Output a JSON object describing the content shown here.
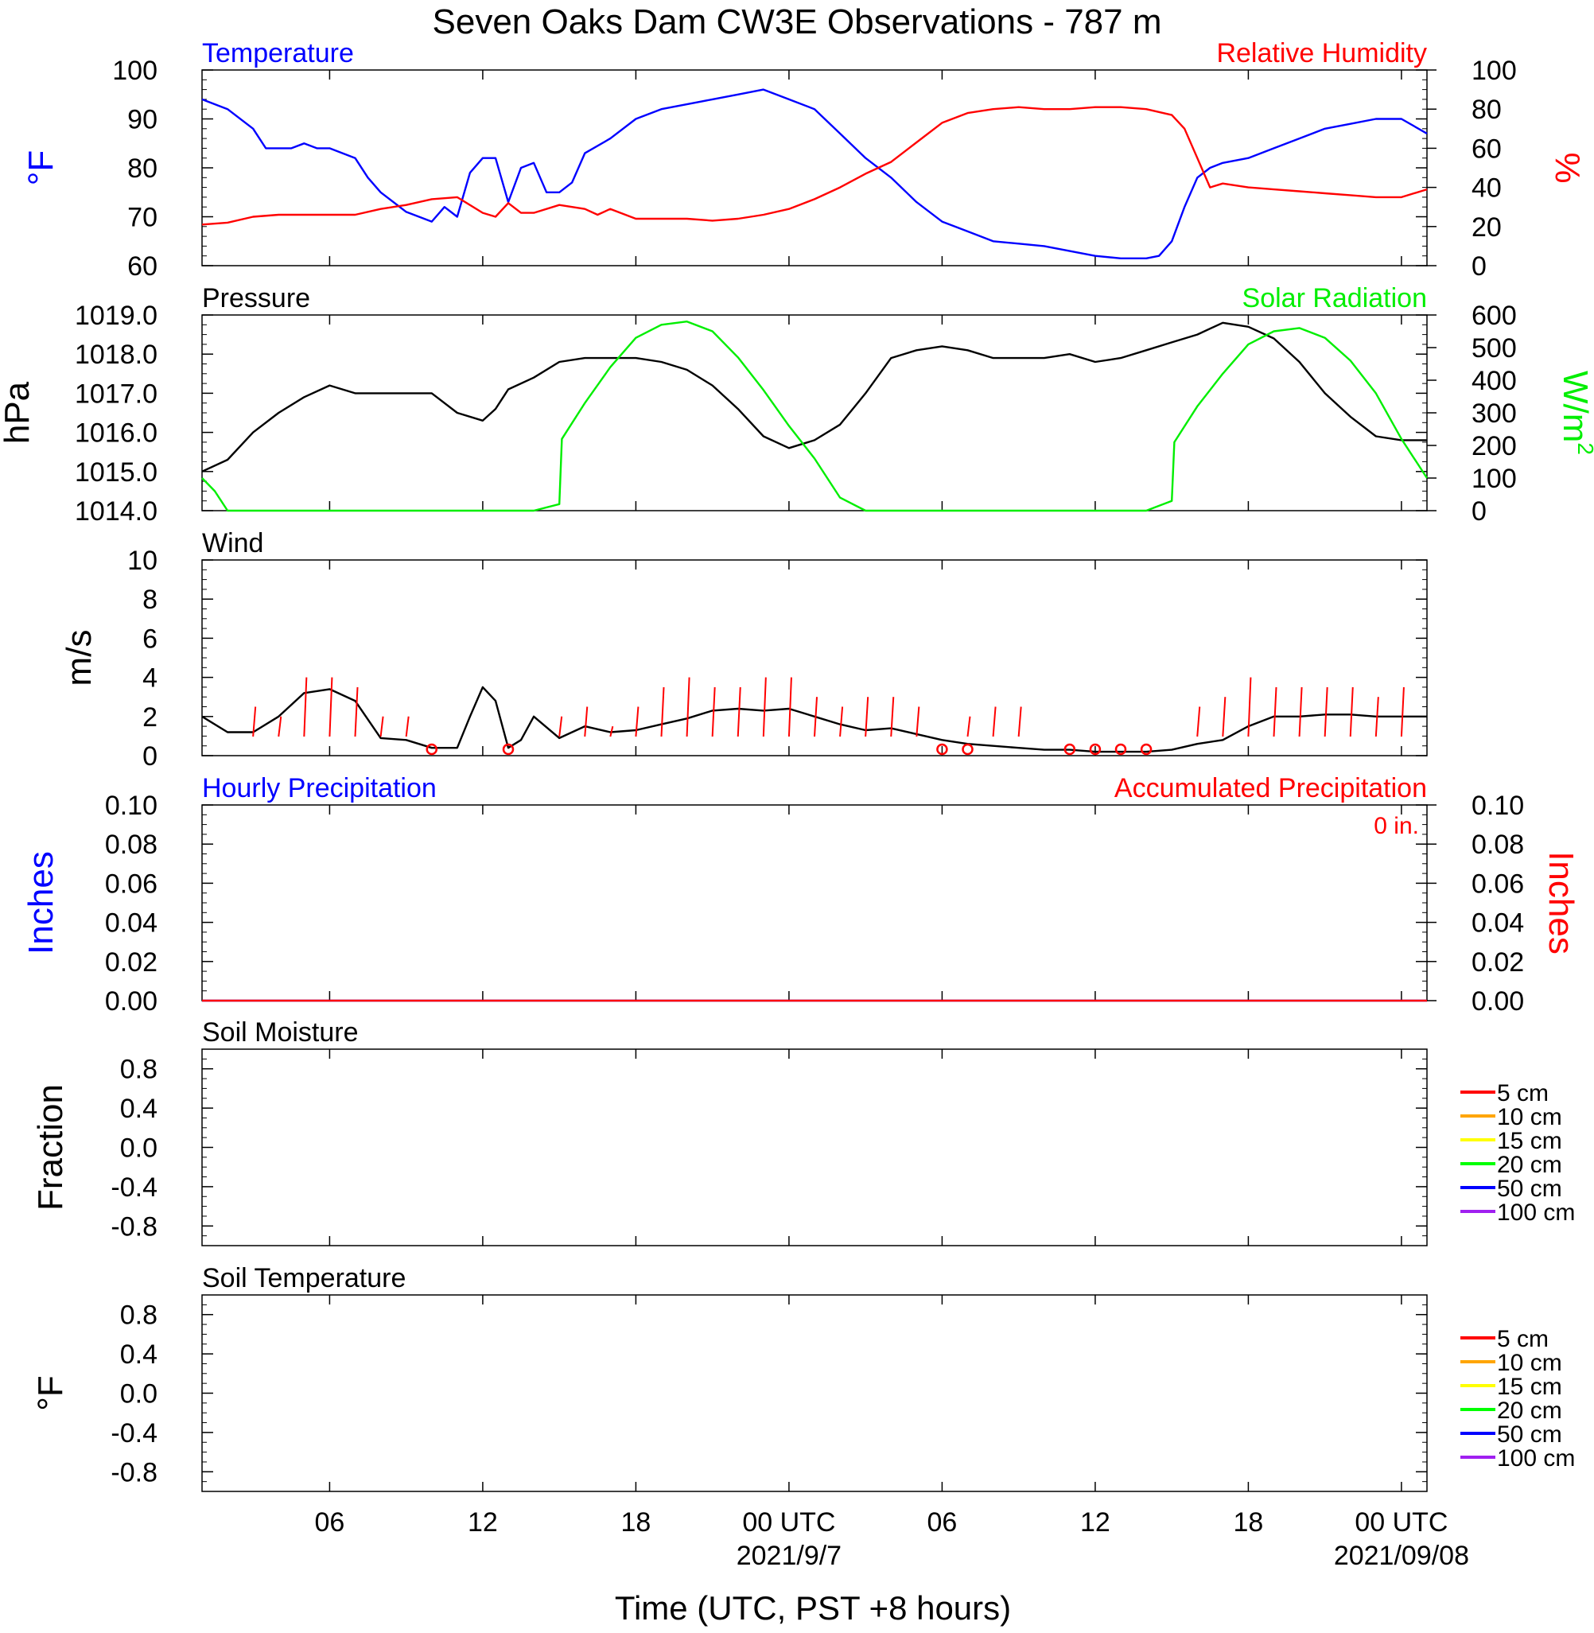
{
  "title": "Seven Oaks Dam CW3E Observations - 787 m",
  "x_axis": {
    "title": "Time (UTC, PST +8 hours)",
    "tick_labels": [
      "06",
      "12",
      "18",
      "00 UTC",
      "06",
      "12",
      "18",
      "00 UTC"
    ],
    "tick_hours": [
      6,
      12,
      18,
      24,
      30,
      36,
      42,
      48
    ],
    "date_labels": [
      {
        "hour": 24,
        "text": "2021/9/7"
      },
      {
        "hour": 48,
        "text": "2021/09/08"
      }
    ],
    "range_hours": [
      1,
      49
    ]
  },
  "chart_data": [
    {
      "type": "line",
      "panel": "temperature-humidity",
      "left_label": "Temperature",
      "right_label": "Relative Humidity",
      "left_unit": "°F",
      "right_unit": "%",
      "left_ylim": [
        60,
        100
      ],
      "right_ylim": [
        0,
        100
      ],
      "left_ticks": [
        "100",
        "90",
        "80",
        "70",
        "60"
      ],
      "right_ticks": [
        "100",
        "80",
        "60",
        "40",
        "20",
        "0"
      ],
      "series": [
        {
          "name": "Temperature",
          "axis": "left",
          "color": "#0000ff",
          "x": [
            1,
            2,
            3,
            3.5,
            4,
            4.5,
            5,
            5.5,
            6,
            7,
            7.5,
            8,
            9,
            10,
            10.5,
            11,
            11.5,
            12,
            12.5,
            13,
            13.5,
            14,
            14.5,
            15,
            15.5,
            16,
            17,
            18,
            19,
            20,
            21,
            22,
            23,
            24,
            25,
            26,
            27,
            28,
            29,
            30,
            30.5,
            31,
            32,
            33,
            34,
            35,
            36,
            37,
            38,
            38.5,
            39,
            39.5,
            40,
            40.5,
            41,
            42,
            43,
            44,
            45,
            46,
            47,
            48,
            49
          ],
          "y": [
            94,
            92,
            88,
            84,
            84,
            84,
            85,
            84,
            84,
            82,
            78,
            75,
            71,
            69,
            72,
            70,
            79,
            82,
            82,
            73,
            80,
            81,
            75,
            75,
            77,
            83,
            86,
            90,
            92,
            93,
            94,
            95,
            96,
            94,
            92,
            87,
            82,
            78,
            73,
            69,
            68,
            67,
            65,
            64.5,
            64,
            63,
            62,
            61.5,
            61.5,
            62,
            65,
            72,
            78,
            80,
            81,
            82,
            84,
            86,
            88,
            89,
            90,
            90,
            87
          ]
        },
        {
          "name": "Relative Humidity",
          "axis": "right",
          "color": "#ff0000",
          "x": [
            1,
            2,
            3,
            4,
            5,
            6,
            7,
            8,
            9,
            10,
            11,
            12,
            12.5,
            13,
            13.5,
            14,
            15,
            16,
            16.5,
            17,
            18,
            19,
            20,
            21,
            22,
            23,
            24,
            25,
            26,
            27,
            28,
            29,
            30,
            31,
            32,
            33,
            34,
            35,
            36,
            37,
            38,
            39,
            39.5,
            40,
            40.5,
            41,
            42,
            43,
            44,
            45,
            46,
            47,
            48,
            49
          ],
          "y": [
            21,
            22,
            25,
            26,
            26,
            26,
            26,
            29,
            31,
            34,
            35,
            27,
            25,
            32,
            27,
            27,
            31,
            29,
            26,
            29,
            24,
            24,
            24,
            23,
            24,
            26,
            29,
            34,
            40,
            47,
            53,
            63,
            73,
            78,
            80,
            81,
            80,
            80,
            81,
            81,
            80,
            77,
            70,
            55,
            40,
            42,
            40,
            39,
            38,
            37,
            36,
            35,
            35,
            39
          ]
        }
      ]
    },
    {
      "type": "line",
      "panel": "pressure-solar",
      "left_label": "Pressure",
      "right_label": "Solar Radiation",
      "left_unit": "hPa",
      "right_unit": "W/m",
      "right_unit_sup": "2",
      "left_ylim": [
        1014,
        1019
      ],
      "right_ylim": [
        0,
        600
      ],
      "left_ticks": [
        "1019.0",
        "1018.0",
        "1017.0",
        "1016.0",
        "1015.0",
        "1014.0"
      ],
      "right_ticks": [
        "600",
        "500",
        "400",
        "300",
        "200",
        "100",
        "0"
      ],
      "series": [
        {
          "name": "Pressure",
          "axis": "left",
          "color": "#000000",
          "x": [
            1,
            2,
            3,
            4,
            5,
            6,
            7,
            8,
            9,
            10,
            11,
            12,
            12.5,
            13,
            14,
            15,
            16,
            17,
            18,
            19,
            20,
            21,
            22,
            23,
            24,
            25,
            26,
            27,
            28,
            29,
            30,
            31,
            32,
            33,
            34,
            35,
            36,
            37,
            38,
            39,
            40,
            41,
            42,
            43,
            44,
            45,
            46,
            47,
            48,
            49
          ],
          "y": [
            1015.0,
            1015.3,
            1016.0,
            1016.5,
            1016.9,
            1017.2,
            1017.0,
            1017.0,
            1017.0,
            1017.0,
            1016.5,
            1016.3,
            1016.6,
            1017.1,
            1017.4,
            1017.8,
            1017.9,
            1017.9,
            1017.9,
            1017.8,
            1017.6,
            1017.2,
            1016.6,
            1015.9,
            1015.6,
            1015.8,
            1016.2,
            1017.0,
            1017.9,
            1018.1,
            1018.2,
            1018.1,
            1017.9,
            1017.9,
            1017.9,
            1018.0,
            1017.8,
            1017.9,
            1018.1,
            1018.3,
            1018.5,
            1018.8,
            1018.7,
            1018.4,
            1017.8,
            1017.0,
            1016.4,
            1015.9,
            1015.8,
            1015.8
          ]
        },
        {
          "name": "Solar Radiation",
          "axis": "right",
          "color": "#00ee00",
          "x": [
            1,
            1.5,
            2,
            3,
            10,
            14,
            15,
            15.1,
            16,
            17,
            18,
            19,
            20,
            21,
            22,
            23,
            24,
            25,
            26,
            27,
            28,
            38,
            39,
            39.1,
            40,
            41,
            42,
            43,
            44,
            45,
            46,
            47,
            48,
            49
          ],
          "y": [
            100,
            60,
            0,
            0,
            0,
            0,
            20,
            220,
            330,
            440,
            530,
            570,
            580,
            550,
            470,
            370,
            260,
            160,
            40,
            0,
            0,
            0,
            30,
            210,
            320,
            420,
            510,
            550,
            560,
            530,
            460,
            360,
            220,
            100
          ]
        }
      ]
    },
    {
      "type": "line",
      "panel": "wind",
      "left_label": "Wind",
      "left_unit": "m/s",
      "left_ylim": [
        0,
        10
      ],
      "left_ticks": [
        "10",
        "8",
        "6",
        "4",
        "2",
        "0"
      ],
      "series": [
        {
          "name": "Wind",
          "axis": "left",
          "color": "#000000",
          "x": [
            1,
            2,
            3,
            4,
            5,
            6,
            7,
            8,
            9,
            10,
            11,
            11.5,
            12,
            12.5,
            13,
            13.5,
            14,
            15,
            16,
            17,
            18,
            19,
            20,
            21,
            22,
            23,
            24,
            25,
            26,
            27,
            28,
            29,
            30,
            31,
            32,
            33,
            34,
            35,
            36,
            37,
            38,
            39,
            40,
            41,
            42,
            43,
            44,
            45,
            46,
            47,
            48,
            49
          ],
          "y": [
            2.0,
            1.2,
            1.2,
            2.0,
            3.2,
            3.4,
            2.8,
            0.9,
            0.8,
            0.4,
            0.4,
            2.0,
            3.5,
            2.8,
            0.4,
            0.8,
            2.0,
            0.9,
            1.5,
            1.2,
            1.3,
            1.6,
            1.9,
            2.3,
            2.4,
            2.3,
            2.4,
            2.0,
            1.6,
            1.3,
            1.4,
            1.1,
            0.8,
            0.6,
            0.5,
            0.4,
            0.3,
            0.3,
            0.2,
            0.2,
            0.2,
            0.3,
            0.6,
            0.8,
            1.5,
            2.0,
            2.0,
            2.1,
            2.1,
            2.0,
            2.0,
            2.0
          ]
        }
      ],
      "barb_hours": [
        3,
        4,
        5,
        6,
        7,
        8,
        9,
        15,
        16,
        17,
        18,
        19,
        20,
        21,
        22,
        23,
        24,
        25,
        26,
        27,
        28,
        29,
        31,
        32,
        33,
        40,
        41,
        42,
        43,
        44,
        45,
        46,
        47,
        48
      ],
      "barb_lengths": [
        2.5,
        2.0,
        4.0,
        4.0,
        3.5,
        2.0,
        2.0,
        2.0,
        2.5,
        1.5,
        2.5,
        3.5,
        4.0,
        3.5,
        3.5,
        4.0,
        4.0,
        3.0,
        2.5,
        3.0,
        3.0,
        2.5,
        2.0,
        2.5,
        2.5,
        2.5,
        3.0,
        4.0,
        3.5,
        3.5,
        3.5,
        3.5,
        3.0,
        3.5
      ],
      "calm_hours": [
        10,
        13,
        30,
        31,
        35,
        36,
        37,
        38
      ]
    },
    {
      "type": "line",
      "panel": "precipitation",
      "left_label": "Hourly Precipitation",
      "right_label": "Accumulated Precipitation",
      "left_unit": "Inches",
      "right_unit": "Inches",
      "total_label": "0 in.",
      "left_ylim": [
        0,
        0.1
      ],
      "right_ylim": [
        0,
        0.1
      ],
      "left_ticks": [
        "0.10",
        "0.08",
        "0.06",
        "0.04",
        "0.02",
        "0.00"
      ],
      "right_ticks": [
        "0.10",
        "0.08",
        "0.06",
        "0.04",
        "0.02",
        "0.00"
      ],
      "series": [
        {
          "name": "Hourly Precipitation",
          "axis": "left",
          "color": "#0000ff",
          "x": [
            1,
            49
          ],
          "y": [
            0,
            0
          ]
        },
        {
          "name": "Accumulated Precipitation",
          "axis": "right",
          "color": "#ff0000",
          "x": [
            1,
            49
          ],
          "y": [
            0,
            0
          ]
        }
      ]
    },
    {
      "type": "line",
      "panel": "soil-moisture",
      "left_label": "Soil Moisture",
      "left_unit": "Fraction",
      "left_ylim": [
        -1,
        1
      ],
      "left_ticks": [
        "0.8",
        "0.4",
        "0.0",
        "-0.4",
        "-0.8"
      ],
      "legend": [
        {
          "name": "5 cm",
          "color": "#ff0000"
        },
        {
          "name": "10 cm",
          "color": "#ffa500"
        },
        {
          "name": "15 cm",
          "color": "#ffff00"
        },
        {
          "name": "20 cm",
          "color": "#00ff00"
        },
        {
          "name": "50 cm",
          "color": "#0000ff"
        },
        {
          "name": "100 cm",
          "color": "#a020f0"
        }
      ],
      "series": []
    },
    {
      "type": "line",
      "panel": "soil-temperature",
      "left_label": "Soil Temperature",
      "left_unit": "°F",
      "left_ylim": [
        -1,
        1
      ],
      "left_ticks": [
        "0.8",
        "0.4",
        "0.0",
        "-0.4",
        "-0.8"
      ],
      "legend": [
        {
          "name": "5 cm",
          "color": "#ff0000"
        },
        {
          "name": "10 cm",
          "color": "#ffa500"
        },
        {
          "name": "15 cm",
          "color": "#ffff00"
        },
        {
          "name": "20 cm",
          "color": "#00ff00"
        },
        {
          "name": "50 cm",
          "color": "#0000ff"
        },
        {
          "name": "100 cm",
          "color": "#a020f0"
        }
      ],
      "series": []
    }
  ]
}
